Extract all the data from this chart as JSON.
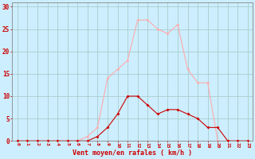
{
  "x_labels": [
    0,
    1,
    2,
    3,
    4,
    5,
    6,
    7,
    8,
    9,
    10,
    11,
    12,
    13,
    14,
    15,
    16,
    17,
    18,
    19,
    20,
    21,
    22,
    23
  ],
  "line1_y": [
    0,
    0,
    0,
    0,
    0,
    0,
    0,
    0,
    1,
    3,
    6,
    10,
    10,
    8,
    6,
    7,
    7,
    6,
    5,
    3,
    3,
    0,
    0,
    0
  ],
  "line2_y": [
    0,
    0,
    0,
    0,
    0,
    0,
    0,
    1,
    3,
    14,
    16,
    18,
    27,
    27,
    25,
    24,
    26,
    16,
    13,
    13,
    0,
    0,
    0,
    0
  ],
  "line1_color": "#cc0000",
  "line2_color": "#ffaaaa",
  "bg_color": "#cceeff",
  "grid_color": "#aacccc",
  "xlabel": "Vent moyen/en rafales ( km/h )",
  "xlabel_color": "#cc0000",
  "ylabel_ticks": [
    0,
    5,
    10,
    15,
    20,
    25,
    30
  ],
  "ylim": [
    0,
    31
  ],
  "xlim": [
    -0.5,
    23.5
  ],
  "tick_color": "#cc0000",
  "spine_color": "#888888",
  "figsize": [
    3.2,
    2.0
  ],
  "dpi": 100
}
